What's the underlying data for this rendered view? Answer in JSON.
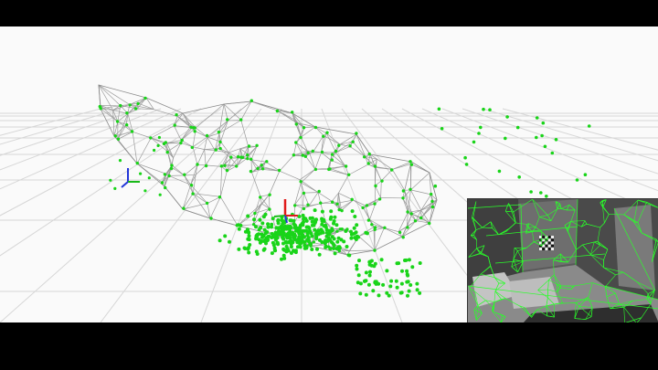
{
  "app": {
    "title": ""
  },
  "viewport": {
    "background": "#fafafa",
    "grid_color": "#d6d6d6",
    "mesh_color": "#9a9a9a",
    "point_color": "#19d419",
    "axis_colors": {
      "x": "#e01b1b",
      "y": "#19b919",
      "z": "#2236d8"
    }
  },
  "camera_inset": {
    "feature_color": "#2aff2a",
    "marker": "checkerboard"
  },
  "icons": [
    "world-origin-axes-icon",
    "camera-pose-axes-icon",
    "checkerboard-marker-icon"
  ]
}
